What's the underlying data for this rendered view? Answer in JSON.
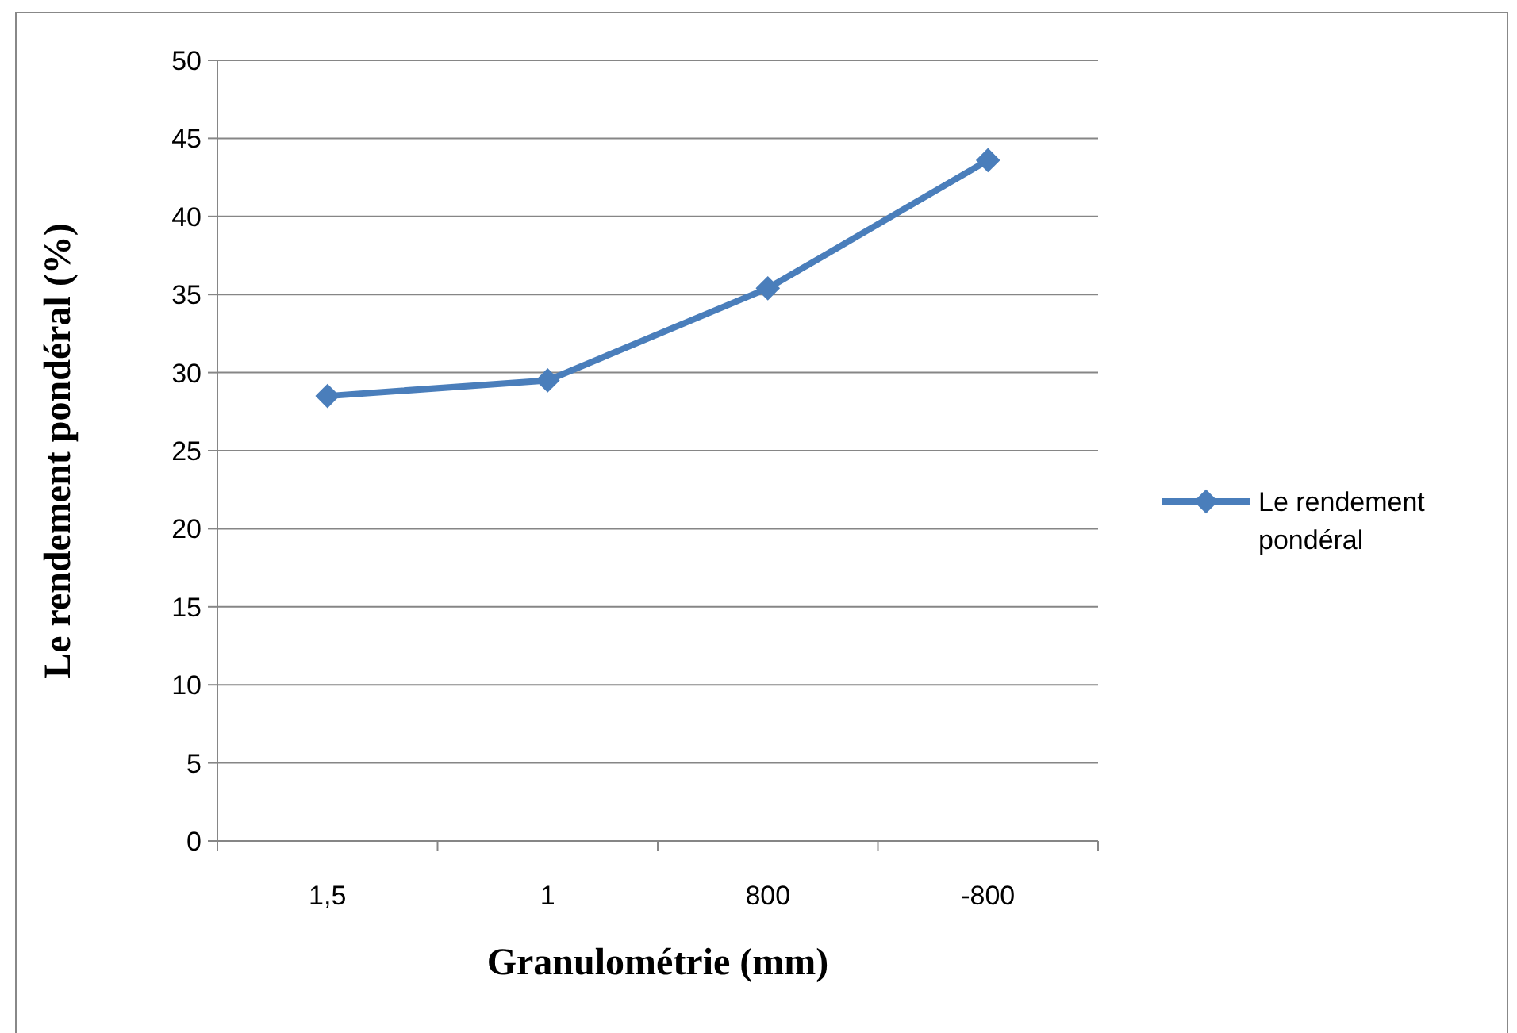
{
  "chart_data": {
    "type": "line",
    "xlabel": "Granulométrie (mm)",
    "ylabel": "Le rendement pondéral (%)",
    "categories": [
      "1,5",
      "1",
      "800",
      "-800"
    ],
    "series": [
      {
        "name": "Le rendement pondéral",
        "color": "#4a7ebb",
        "values": [
          28.5,
          29.5,
          35.4,
          43.6
        ]
      }
    ],
    "ylim": [
      0,
      50
    ],
    "yticks": [
      0,
      5,
      10,
      15,
      20,
      25,
      30,
      35,
      40,
      45,
      50
    ],
    "grid": "y",
    "legend": "right",
    "marker": "diamond",
    "line_style": "solid"
  }
}
